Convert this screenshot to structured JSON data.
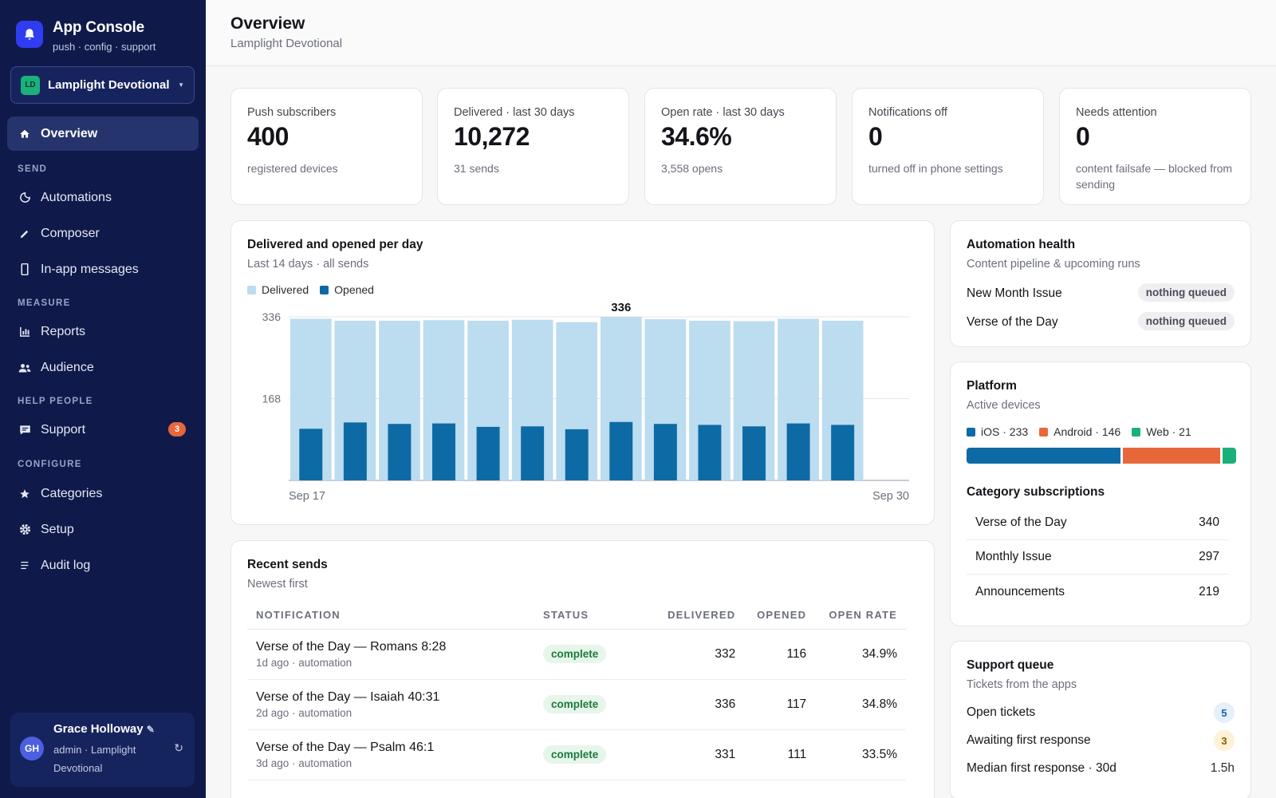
{
  "app": {
    "title": "App Console",
    "subtitle": "push · config · support"
  },
  "workspace": {
    "initials": "LD",
    "name": "Lamplight Devotional"
  },
  "nav": {
    "overview": "Overview",
    "sections": {
      "send": "SEND",
      "measure": "MEASURE",
      "help": "HELP PEOPLE",
      "configure": "CONFIGURE"
    },
    "automations": "Automations",
    "composer": "Composer",
    "inapp": "In-app messages",
    "reports": "Reports",
    "audience": "Audience",
    "support": "Support",
    "support_badge": "3",
    "categories": "Categories",
    "setup": "Setup",
    "audit": "Audit log"
  },
  "user": {
    "initials": "GH",
    "name": "Grace Holloway",
    "role": "admin · Lamplight Devotional"
  },
  "header": {
    "title": "Overview",
    "subtitle": "Lamplight Devotional"
  },
  "stats": [
    {
      "label": "Push subscribers",
      "value": "400",
      "note": "registered devices"
    },
    {
      "label": "Delivered · last 30 days",
      "value": "10,272",
      "note": "31 sends"
    },
    {
      "label": "Open rate · last 30 days",
      "value": "34.6%",
      "note": "3,558 opens"
    },
    {
      "label": "Notifications off",
      "value": "0",
      "note": "turned off in phone settings"
    },
    {
      "label": "Needs attention",
      "value": "0",
      "note": "content failsafe — blocked from sending"
    }
  ],
  "chart_card": {
    "title": "Delivered and opened per day",
    "subtitle": "Last 14 days · all sends"
  },
  "chart_data": {
    "type": "bar",
    "x_start": "Sep 17",
    "x_end": "Sep 30",
    "series": [
      {
        "name": "Delivered",
        "color": "#bcdcf0",
        "values": [
          332,
          328,
          328,
          329,
          328,
          330,
          325,
          336,
          331,
          328,
          327,
          332,
          328,
          0
        ]
      },
      {
        "name": "Opened",
        "color": "#0d6aa5",
        "values": [
          106,
          119,
          116,
          117,
          110,
          111,
          105,
          120,
          116,
          114,
          111,
          117,
          114,
          0
        ]
      }
    ],
    "yticks": [
      168,
      336
    ],
    "ylim": [
      0,
      336
    ],
    "max_label": "336",
    "grid": true,
    "legend": "top-left"
  },
  "automation": {
    "title": "Automation health",
    "subtitle": "Content pipeline & upcoming runs",
    "rows": [
      {
        "label": "New Month Issue",
        "status": "nothing queued"
      },
      {
        "label": "Verse of the Day",
        "status": "nothing queued"
      }
    ]
  },
  "platform": {
    "title": "Platform",
    "subtitle": "Active devices",
    "items": [
      {
        "label": "iOS · 233",
        "color": "#0d6aa5",
        "value": 233
      },
      {
        "label": "Android · 146",
        "color": "#e8673a",
        "value": 146
      },
      {
        "label": "Web · 21",
        "color": "#1bb07a",
        "value": 21
      }
    ],
    "cat_title": "Category subscriptions",
    "categories": [
      {
        "label": "Verse of the Day",
        "value": "340"
      },
      {
        "label": "Monthly Issue",
        "value": "297"
      },
      {
        "label": "Announcements",
        "value": "219"
      }
    ]
  },
  "recent": {
    "title": "Recent sends",
    "subtitle": "Newest first",
    "headers": [
      "NOTIFICATION",
      "STATUS",
      "DELIVERED",
      "OPENED",
      "OPEN RATE"
    ],
    "rows": [
      {
        "title": "Verse of the Day — Romans 8:28",
        "meta": "1d ago · automation",
        "status": "complete",
        "delivered": "332",
        "opened": "116",
        "rate": "34.9%"
      },
      {
        "title": "Verse of the Day — Isaiah 40:31",
        "meta": "2d ago · automation",
        "status": "complete",
        "delivered": "336",
        "opened": "117",
        "rate": "34.8%"
      },
      {
        "title": "Verse of the Day — Psalm 46:1",
        "meta": "3d ago · automation",
        "status": "complete",
        "delivered": "331",
        "opened": "111",
        "rate": "33.5%"
      }
    ]
  },
  "support_queue": {
    "title": "Support queue",
    "subtitle": "Tickets from the apps",
    "open_label": "Open tickets",
    "open_value": "5",
    "awaiting_label": "Awaiting first response",
    "awaiting_value": "3",
    "median_label": "Median first response · 30d",
    "median_value": "1.5h"
  }
}
